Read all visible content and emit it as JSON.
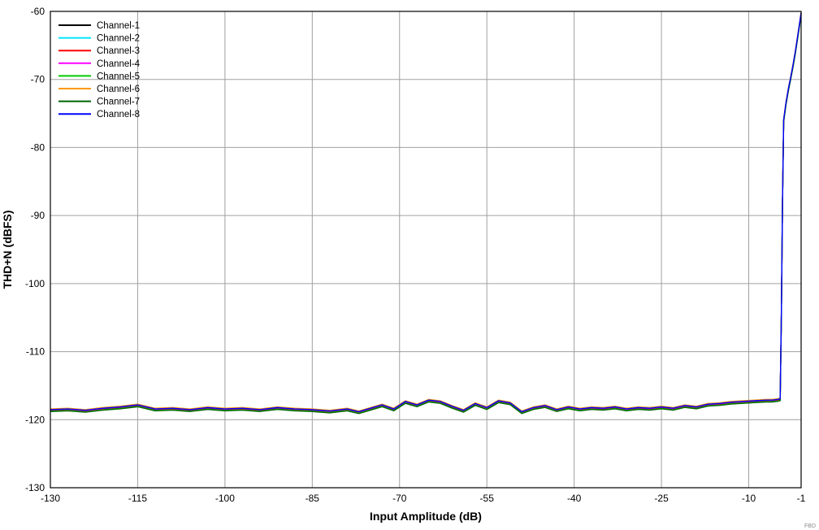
{
  "watermark": "FBD",
  "colors": {
    "background": "#ffffff",
    "grid": "#a0a0a0",
    "axis": "#000000",
    "tick_label": "#000000",
    "watermark": "#8a8a8a"
  },
  "chart_data": {
    "type": "line",
    "title": "",
    "xlabel": "Input Amplitude (dB)",
    "ylabel": "THD+N (dBFS)",
    "xlim": [
      -130,
      -1
    ],
    "ylim": [
      -130,
      -60
    ],
    "x_ticks": [
      -130,
      -115,
      -100,
      -85,
      -70,
      -55,
      -40,
      -25,
      -10,
      -1
    ],
    "y_ticks": [
      -130,
      -120,
      -110,
      -100,
      -90,
      -80,
      -70,
      -60
    ],
    "grid": true,
    "legend_position": "top-left",
    "x": [
      -130,
      -127,
      -124,
      -121,
      -118,
      -115,
      -112,
      -109,
      -106,
      -103,
      -100,
      -97,
      -94,
      -91,
      -88,
      -85,
      -82,
      -79,
      -77,
      -75,
      -73,
      -71,
      -69,
      -67,
      -65,
      -63,
      -61,
      -59,
      -57,
      -55,
      -53,
      -51,
      -49,
      -47,
      -45,
      -43,
      -41,
      -39,
      -37,
      -35,
      -33,
      -31,
      -29,
      -27,
      -25,
      -23,
      -21,
      -19,
      -17,
      -15,
      -13,
      -11,
      -9,
      -7,
      -6,
      -5,
      -4.6,
      -4.4,
      -4.2,
      -4,
      -3.6,
      -3.2,
      -2.8,
      -2.4,
      -2,
      -1.5,
      -1
    ],
    "base_values": [
      -118.6,
      -118.5,
      -118.7,
      -118.4,
      -118.2,
      -117.9,
      -118.5,
      -118.4,
      -118.6,
      -118.3,
      -118.5,
      -118.4,
      -118.6,
      -118.3,
      -118.5,
      -118.6,
      -118.8,
      -118.5,
      -118.9,
      -118.4,
      -117.9,
      -118.5,
      -117.4,
      -117.9,
      -117.2,
      -117.4,
      -118.1,
      -118.7,
      -117.7,
      -118.3,
      -117.3,
      -117.6,
      -118.9,
      -118.3,
      -118.0,
      -118.6,
      -118.2,
      -118.5,
      -118.3,
      -118.4,
      -118.2,
      -118.5,
      -118.3,
      -118.4,
      -118.2,
      -118.4,
      -118.0,
      -118.2,
      -117.8,
      -117.7,
      -117.5,
      -117.4,
      -117.3,
      -117.2,
      -117.2,
      -117.1,
      -117.0,
      -105.0,
      -88.0,
      -76.0,
      -73.5,
      -71.5,
      -69.8,
      -68.0,
      -66.0,
      -63.2,
      -60.3
    ],
    "series": [
      {
        "name": "Channel-1",
        "color": "#000000",
        "offset": 0.0
      },
      {
        "name": "Channel-2",
        "color": "#00e5ff",
        "offset": 0.12
      },
      {
        "name": "Channel-3",
        "color": "#ff0000",
        "offset": -0.1
      },
      {
        "name": "Channel-4",
        "color": "#ff00ff",
        "offset": 0.06
      },
      {
        "name": "Channel-5",
        "color": "#00cc00",
        "offset": -0.15
      },
      {
        "name": "Channel-6",
        "color": "#ff9900",
        "offset": 0.18
      },
      {
        "name": "Channel-7",
        "color": "#006400",
        "offset": -0.2
      },
      {
        "name": "Channel-8",
        "color": "#0000ff",
        "offset": 0.08
      }
    ]
  }
}
